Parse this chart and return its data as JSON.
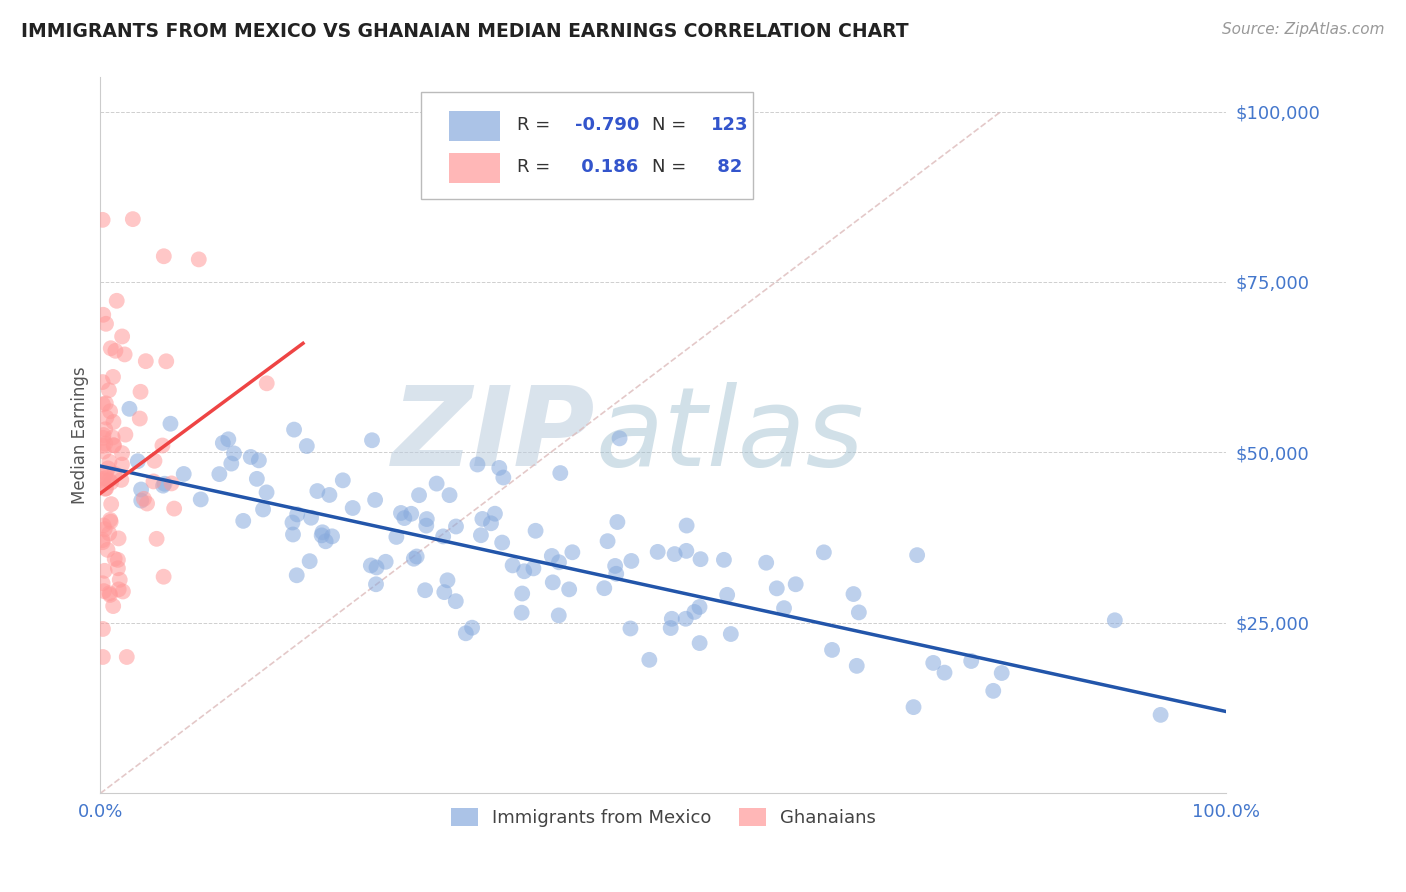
{
  "title": "IMMIGRANTS FROM MEXICO VS GHANAIAN MEDIAN EARNINGS CORRELATION CHART",
  "source_text": "Source: ZipAtlas.com",
  "ylabel": "Median Earnings",
  "xlim": [
    0.0,
    1.0
  ],
  "ylim": [
    0,
    105000
  ],
  "yticks": [
    0,
    25000,
    50000,
    75000,
    100000
  ],
  "ytick_labels": [
    "",
    "$25,000",
    "$50,000",
    "$75,000",
    "$100,000"
  ],
  "xtick_labels": [
    "0.0%",
    "100.0%"
  ],
  "blue_color": "#88AADD",
  "pink_color": "#FF9999",
  "blue_line_color": "#2255AA",
  "pink_line_color": "#EE4444",
  "dash_line_color": "#DDBBBB",
  "watermark_zip": "#AABBDD",
  "watermark_atlas": "#88AACC",
  "legend_R_blue": "-0.790",
  "legend_N_blue": "123",
  "legend_R_pink": "0.186",
  "legend_N_pink": "82",
  "blue_seed": 42,
  "pink_seed": 7,
  "background_color": "#FFFFFF",
  "grid_color": "#BBBBBB",
  "title_color": "#222222",
  "tick_color": "#4477CC",
  "legend_text_color": "#333333",
  "legend_value_color": "#3355CC"
}
